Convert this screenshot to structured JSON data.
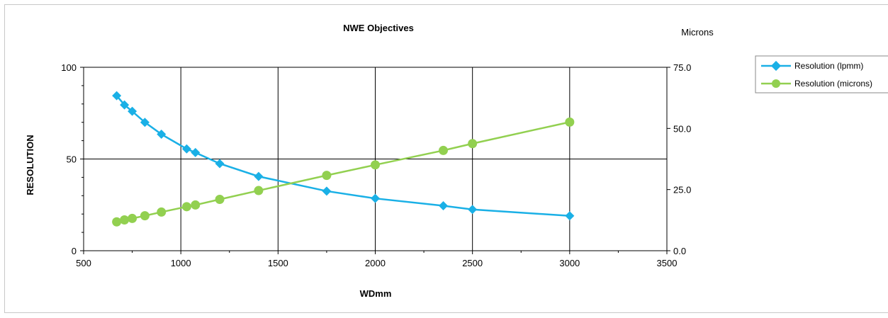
{
  "chart_data": {
    "type": "line",
    "title": "NWE Objectives",
    "xlabel": "WDmm",
    "ylabel": "RESOLUTION",
    "y2label": "Microns",
    "xlim": [
      500,
      3500
    ],
    "ylim": [
      0,
      100
    ],
    "y2lim": [
      0,
      75
    ],
    "xticks": [
      "500",
      "1000",
      "1500",
      "2000",
      "2500",
      "3000",
      "3500"
    ],
    "yticks": [
      "0",
      "50",
      "100"
    ],
    "y2ticks": [
      "0.0",
      "25.0",
      "50.0",
      "75.0"
    ],
    "grid": true,
    "legend_position": "right",
    "series": [
      {
        "name": "Resolution (lpmm)",
        "axis": "left",
        "color": "#1ab0e6",
        "marker": "diamond",
        "x": [
          670,
          710,
          750,
          815,
          900,
          1030,
          1075,
          1200,
          1400,
          1750,
          2000,
          2350,
          2500,
          3000
        ],
        "values": [
          84.5,
          79.5,
          76,
          70,
          63.5,
          55.5,
          53.5,
          47.5,
          40.5,
          32.5,
          28.5,
          24.5,
          22.5,
          19
        ]
      },
      {
        "name": "Resolution (microns)",
        "axis": "right",
        "color": "#92d050",
        "marker": "circle",
        "x": [
          670,
          710,
          750,
          815,
          900,
          1030,
          1075,
          1200,
          1400,
          1750,
          2000,
          2350,
          2500,
          3000
        ],
        "values": [
          11.8,
          12.6,
          13.2,
          14.3,
          15.8,
          18.0,
          18.7,
          21.0,
          24.6,
          30.8,
          35.1,
          41.0,
          43.8,
          52.6
        ]
      }
    ]
  }
}
